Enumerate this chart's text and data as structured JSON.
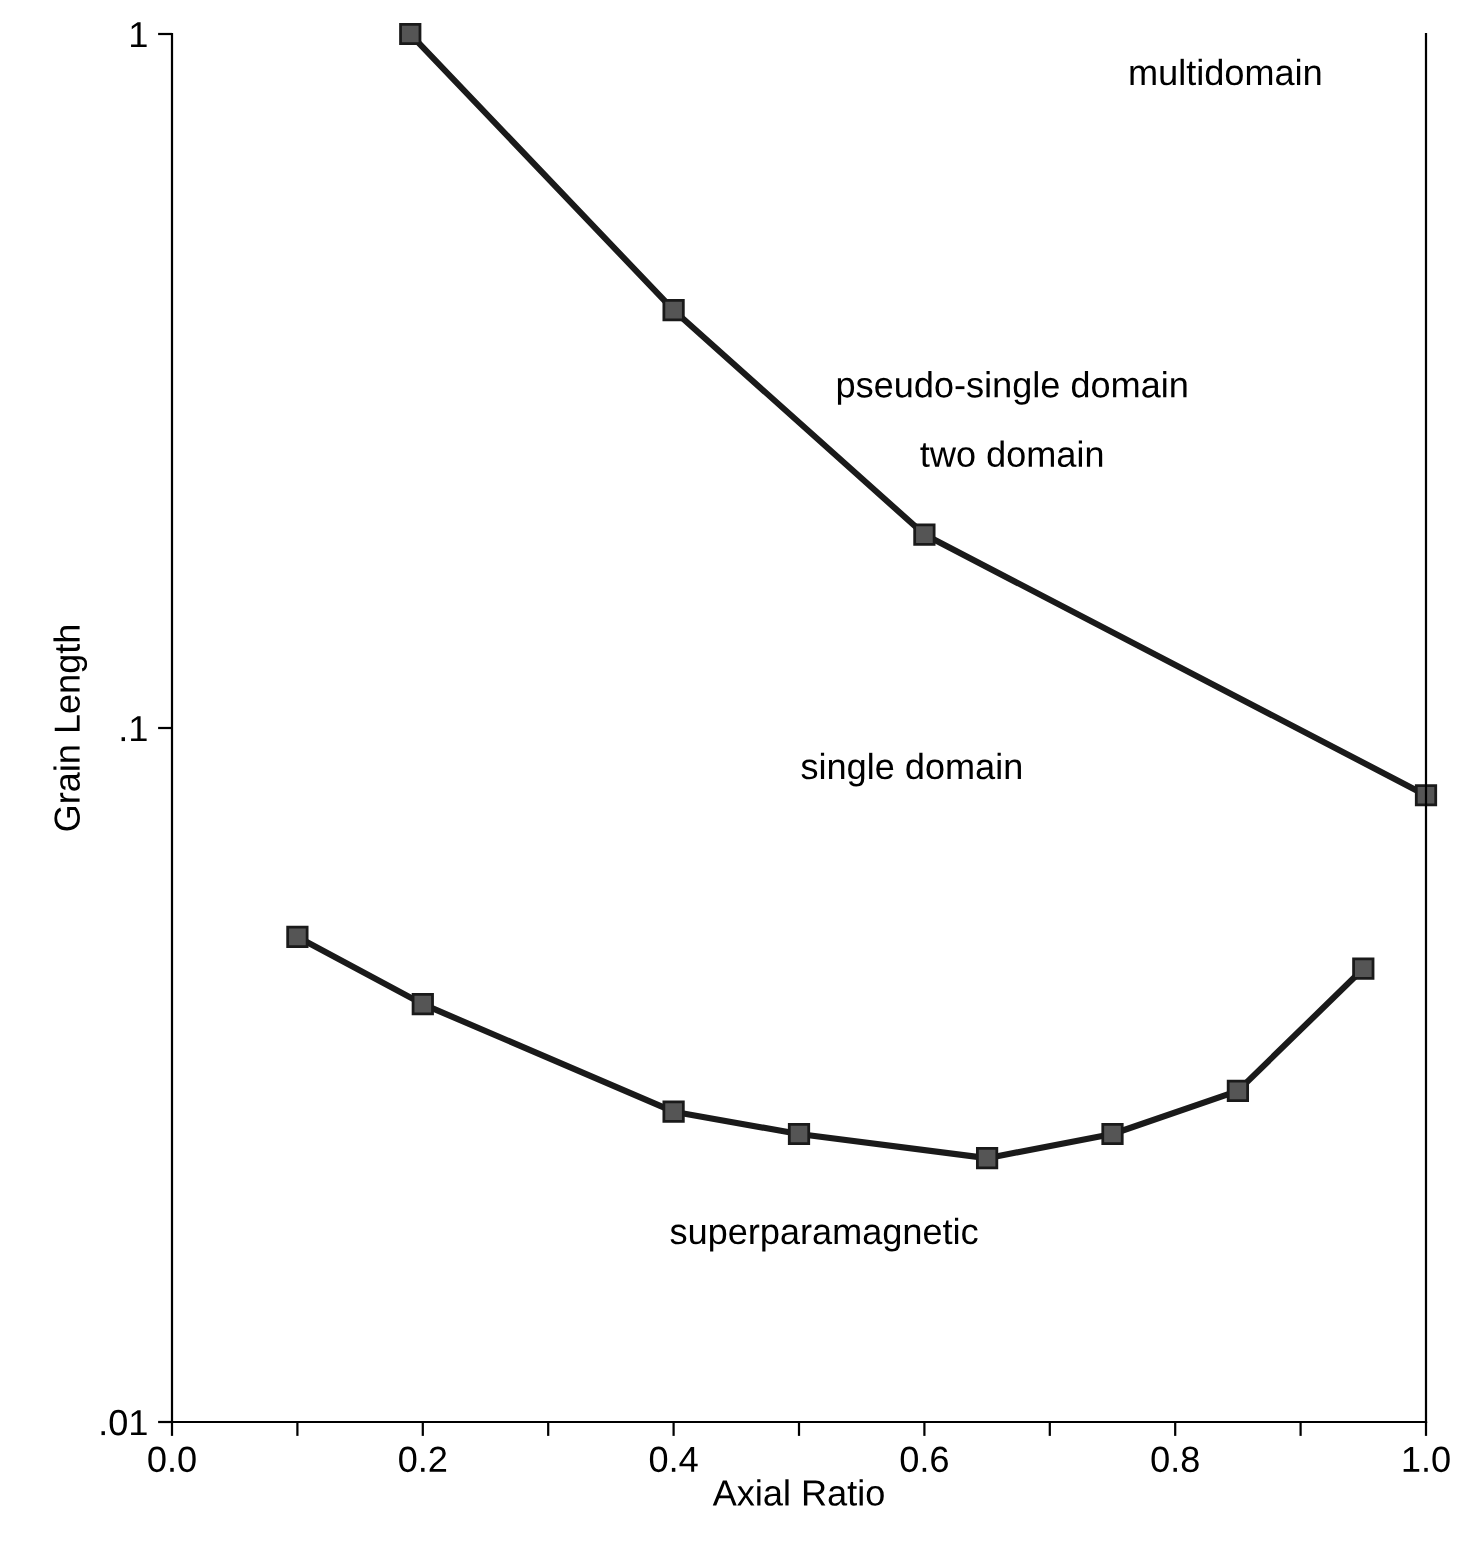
{
  "chart_data": {
    "type": "line",
    "xlabel": "Axial Ratio",
    "ylabel": "Grain Length",
    "log": "y",
    "xlim": [
      0.0,
      1.0
    ],
    "ylim": [
      0.01,
      1
    ],
    "xticks": [
      {
        "value": 0,
        "label": "0.0"
      },
      {
        "value": 0.1,
        "label": null
      },
      {
        "value": 0.2,
        "label": "0.2"
      },
      {
        "value": 0.3,
        "label": null
      },
      {
        "value": 0.4,
        "label": "0.4"
      },
      {
        "value": 0.5,
        "label": null
      },
      {
        "value": 0.6,
        "label": "0.6"
      },
      {
        "value": 0.7,
        "label": null
      },
      {
        "value": 0.8,
        "label": "0.8"
      },
      {
        "value": 0.9,
        "label": null
      },
      {
        "value": 1.0,
        "label": "1.0"
      }
    ],
    "yticks": [
      {
        "value": 0.01,
        "label": ".01"
      },
      {
        "value": 0.1,
        "label": ".1"
      },
      {
        "value": 1,
        "label": "1"
      }
    ],
    "grid": false,
    "marker": "square",
    "line_style": "solid",
    "series": [
      {
        "color": "#1a1a1a",
        "x": [
          0.19,
          0.4,
          0.6,
          1.0
        ],
        "values": [
          1.0,
          0.4,
          0.19,
          0.08
        ]
      },
      {
        "color": "#1a1a1a",
        "x": [
          0.1,
          0.2,
          0.4,
          0.5,
          0.65,
          0.75,
          0.85,
          0.95
        ],
        "values": [
          0.05,
          0.04,
          0.028,
          0.026,
          0.024,
          0.026,
          0.03,
          0.045
        ]
      }
    ],
    "annotations": [
      "multidomain",
      "pseudo-single domain",
      "two domain",
      "single domain",
      "superparamagnetic"
    ]
  }
}
